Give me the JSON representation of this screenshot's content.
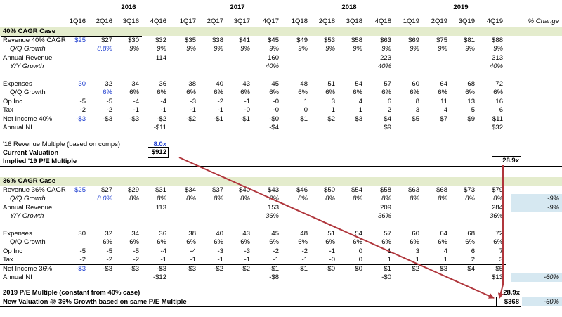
{
  "colors": {
    "band": "#e4eccd",
    "blue": "#1f3fd0",
    "arrow": "#b0363c",
    "shade": "#d6e8f1"
  },
  "header": {
    "years": [
      "2016",
      "2017",
      "2018",
      "2019"
    ],
    "quarters": [
      "1Q16",
      "2Q16",
      "3Q16",
      "4Q16",
      "1Q17",
      "2Q17",
      "3Q17",
      "4Q17",
      "1Q18",
      "2Q18",
      "3Q18",
      "4Q18",
      "1Q19",
      "2Q19",
      "3Q19",
      "4Q19"
    ],
    "pct_change_label": "% Change"
  },
  "case1": {
    "title": "40% CAGR Case",
    "rows": [
      {
        "label": "Revenue 40% CAGR",
        "style": "",
        "values": [
          "$25",
          "$27",
          "$30",
          "$32",
          "$35",
          "$38",
          "$41",
          "$45",
          "$49",
          "$53",
          "$58",
          "$63",
          "$69",
          "$75",
          "$81",
          "$88"
        ],
        "first_blue": true
      },
      {
        "label": "Q/Q Growth",
        "style": "i",
        "indent": true,
        "values": [
          "",
          "8.8%",
          "9%",
          "9%",
          "9%",
          "9%",
          "9%",
          "9%",
          "9%",
          "9%",
          "9%",
          "9%",
          "9%",
          "9%",
          "9%",
          "9%"
        ],
        "second_blue": true,
        "values_italic": true
      },
      {
        "label": "Annual Revenue",
        "style": "",
        "values": [
          "",
          "",
          "",
          "114",
          "",
          "",
          "",
          "160",
          "",
          "",
          "",
          "223",
          "",
          "",
          "",
          "313"
        ]
      },
      {
        "label": "Y/Y Growth",
        "style": "i",
        "indent": true,
        "values": [
          "",
          "",
          "",
          "",
          "",
          "",
          "",
          "40%",
          "",
          "",
          "",
          "40%",
          "",
          "",
          "",
          "40%"
        ],
        "values_italic": true
      },
      {
        "label": "",
        "values": []
      },
      {
        "label": "Expenses",
        "style": "",
        "values": [
          "30",
          "32",
          "34",
          "36",
          "38",
          "40",
          "43",
          "45",
          "48",
          "51",
          "54",
          "57",
          "60",
          "64",
          "68",
          "72"
        ],
        "first_blue": true
      },
      {
        "label": "Q/Q Growth",
        "style": "",
        "indent": true,
        "values": [
          "",
          "6%",
          "6%",
          "6%",
          "6%",
          "6%",
          "6%",
          "6%",
          "6%",
          "6%",
          "6%",
          "6%",
          "6%",
          "6%",
          "6%",
          "6%"
        ],
        "second_blue": true
      },
      {
        "label": "Op Inc",
        "style": "",
        "values": [
          "-5",
          "-5",
          "-4",
          "-4",
          "-3",
          "-2",
          "-1",
          "-0",
          "1",
          "3",
          "4",
          "6",
          "8",
          "11",
          "13",
          "16"
        ]
      },
      {
        "label": "Tax",
        "style": "",
        "values": [
          "-2",
          "-2",
          "-1",
          "-1",
          "-1",
          "-1",
          "-0",
          "-0",
          "0",
          "1",
          "1",
          "2",
          "3",
          "4",
          "5",
          "6"
        ]
      },
      {
        "label": "Net Income 40%",
        "style": "",
        "values": [
          "-$3",
          "-$3",
          "-$3",
          "-$2",
          "-$2",
          "-$1",
          "-$1",
          "-$0",
          "$1",
          "$2",
          "$3",
          "$4",
          "$5",
          "$7",
          "$9",
          "$11"
        ],
        "first_blue": true,
        "topline": true
      },
      {
        "label": "Annual NI",
        "style": "",
        "values": [
          "",
          "",
          "",
          "-$11",
          "",
          "",
          "",
          "-$4",
          "",
          "",
          "",
          "$9",
          "",
          "",
          "",
          "$32"
        ]
      }
    ],
    "multiple_label": "'16 Revenue Multiple (based on comps)",
    "multiple_value": "8.0x",
    "valuation_label": "Current Valuation",
    "valuation_value": "$912",
    "pe_label": "Implied '19 P/E Multiple",
    "pe_value": "28.9x"
  },
  "case2": {
    "title": "36% CAGR Case",
    "rows": [
      {
        "label": "Revenue 36% CAGR",
        "style": "",
        "values": [
          "$25",
          "$27",
          "$29",
          "$31",
          "$34",
          "$37",
          "$40",
          "$43",
          "$46",
          "$50",
          "$54",
          "$58",
          "$63",
          "$68",
          "$73",
          "$79"
        ],
        "first_blue": true
      },
      {
        "label": "Q/Q Growth",
        "style": "i",
        "indent": true,
        "values": [
          "",
          "8.0%",
          "8%",
          "8%",
          "8%",
          "8%",
          "8%",
          "8%",
          "8%",
          "8%",
          "8%",
          "8%",
          "8%",
          "8%",
          "8%",
          "8%"
        ],
        "second_blue": true,
        "values_italic": true,
        "pct": "-9%"
      },
      {
        "label": "Annual Revenue",
        "style": "",
        "values": [
          "",
          "",
          "",
          "113",
          "",
          "",
          "",
          "153",
          "",
          "",
          "",
          "209",
          "",
          "",
          "",
          "284"
        ],
        "pct": "-9%"
      },
      {
        "label": "Y/Y Growth",
        "style": "i",
        "indent": true,
        "values": [
          "",
          "",
          "",
          "",
          "",
          "",
          "",
          "36%",
          "",
          "",
          "",
          "36%",
          "",
          "",
          "",
          "36%"
        ],
        "values_italic": true
      },
      {
        "label": "",
        "values": []
      },
      {
        "label": "Expenses",
        "style": "",
        "values": [
          "30",
          "32",
          "34",
          "36",
          "38",
          "40",
          "43",
          "45",
          "48",
          "51",
          "54",
          "57",
          "60",
          "64",
          "68",
          "72"
        ]
      },
      {
        "label": "Q/Q Growth",
        "style": "",
        "indent": true,
        "values": [
          "",
          "6%",
          "6%",
          "6%",
          "6%",
          "6%",
          "6%",
          "6%",
          "6%",
          "6%",
          "6%",
          "6%",
          "6%",
          "6%",
          "6%",
          "6%"
        ]
      },
      {
        "label": "Op Inc",
        "style": "",
        "values": [
          "-5",
          "-5",
          "-5",
          "-4",
          "-4",
          "-3",
          "-3",
          "-2",
          "-2",
          "-1",
          "0",
          "1",
          "3",
          "4",
          "6",
          "7"
        ]
      },
      {
        "label": "Tax",
        "style": "",
        "values": [
          "-2",
          "-2",
          "-2",
          "-1",
          "-1",
          "-1",
          "-1",
          "-1",
          "-1",
          "-0",
          "0",
          "1",
          "1",
          "1",
          "2",
          "3"
        ]
      },
      {
        "label": "Net Income 36%",
        "style": "",
        "values": [
          "-$3",
          "-$3",
          "-$3",
          "-$3",
          "-$3",
          "-$2",
          "-$2",
          "-$1",
          "-$1",
          "-$0",
          "$0",
          "$1",
          "$2",
          "$3",
          "$4",
          "$5"
        ],
        "first_blue": true,
        "topline": true
      },
      {
        "label": "Annual NI",
        "style": "",
        "values": [
          "",
          "",
          "",
          "-$12",
          "",
          "",
          "",
          "-$8",
          "",
          "",
          "",
          "-$0",
          "",
          "",
          "",
          "$13"
        ],
        "pct": "-60%"
      }
    ],
    "pe_label": "2019 P/E Multiple (constant from 40% case)",
    "pe_value": "28.9x",
    "valuation_label": "New Valuation @ 36% Growth based on same P/E Multiple",
    "valuation_value": "$368",
    "valuation_pct": "-60%"
  }
}
